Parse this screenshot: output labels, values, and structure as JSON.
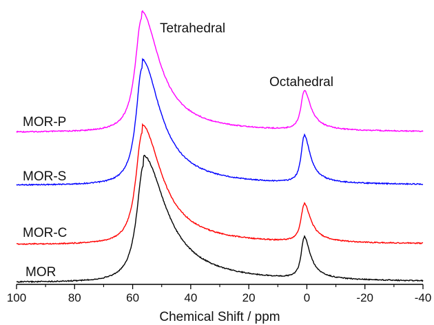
{
  "chart_data": {
    "type": "line",
    "title": "",
    "xlabel": "Chemical Shift / ppm",
    "ylabel": "",
    "x_reversed": true,
    "xlim": [
      100,
      -40
    ],
    "xticks": [
      100,
      80,
      60,
      40,
      20,
      0,
      -20,
      -40
    ],
    "xtick_labels": [
      "100",
      "80",
      "60",
      "40",
      "20",
      "0",
      "-20",
      "-40"
    ],
    "y_axis_shown": false,
    "grid": false,
    "legend": "none (series labelled inline at left)",
    "annotations": [
      {
        "text": "Tetrahedral",
        "x": 57
      },
      {
        "text": "Octahedral",
        "x": 1
      }
    ],
    "series": [
      {
        "name": "MOR-P",
        "color": "#ff00ff",
        "baseline": 0.0,
        "peaks": [
          {
            "center": 57,
            "height": 1.0,
            "width": 2.6,
            "tail": 0.55
          },
          {
            "center": 1,
            "height": 0.33,
            "width": 1.3,
            "tail": 0.35
          }
        ]
      },
      {
        "name": "MOR-S",
        "color": "#0000ff",
        "baseline": 0.0,
        "peaks": [
          {
            "center": 56.8,
            "height": 1.0,
            "width": 2.5,
            "tail": 0.6
          },
          {
            "center": 1,
            "height": 0.38,
            "width": 1.2,
            "tail": 0.35
          }
        ]
      },
      {
        "name": "MOR-C",
        "color": "#ff0000",
        "baseline": 0.0,
        "peaks": [
          {
            "center": 56.8,
            "height": 1.0,
            "width": 2.6,
            "tail": 0.62
          },
          {
            "center": 1,
            "height": 0.32,
            "width": 1.3,
            "tail": 0.35
          }
        ]
      },
      {
        "name": "MOR",
        "color": "#000000",
        "baseline": 0.0,
        "peaks": [
          {
            "center": 56.3,
            "height": 1.0,
            "width": 2.8,
            "tail": 0.68
          },
          {
            "center": 1,
            "height": 0.33,
            "width": 1.2,
            "tail": 0.35
          }
        ]
      }
    ]
  }
}
